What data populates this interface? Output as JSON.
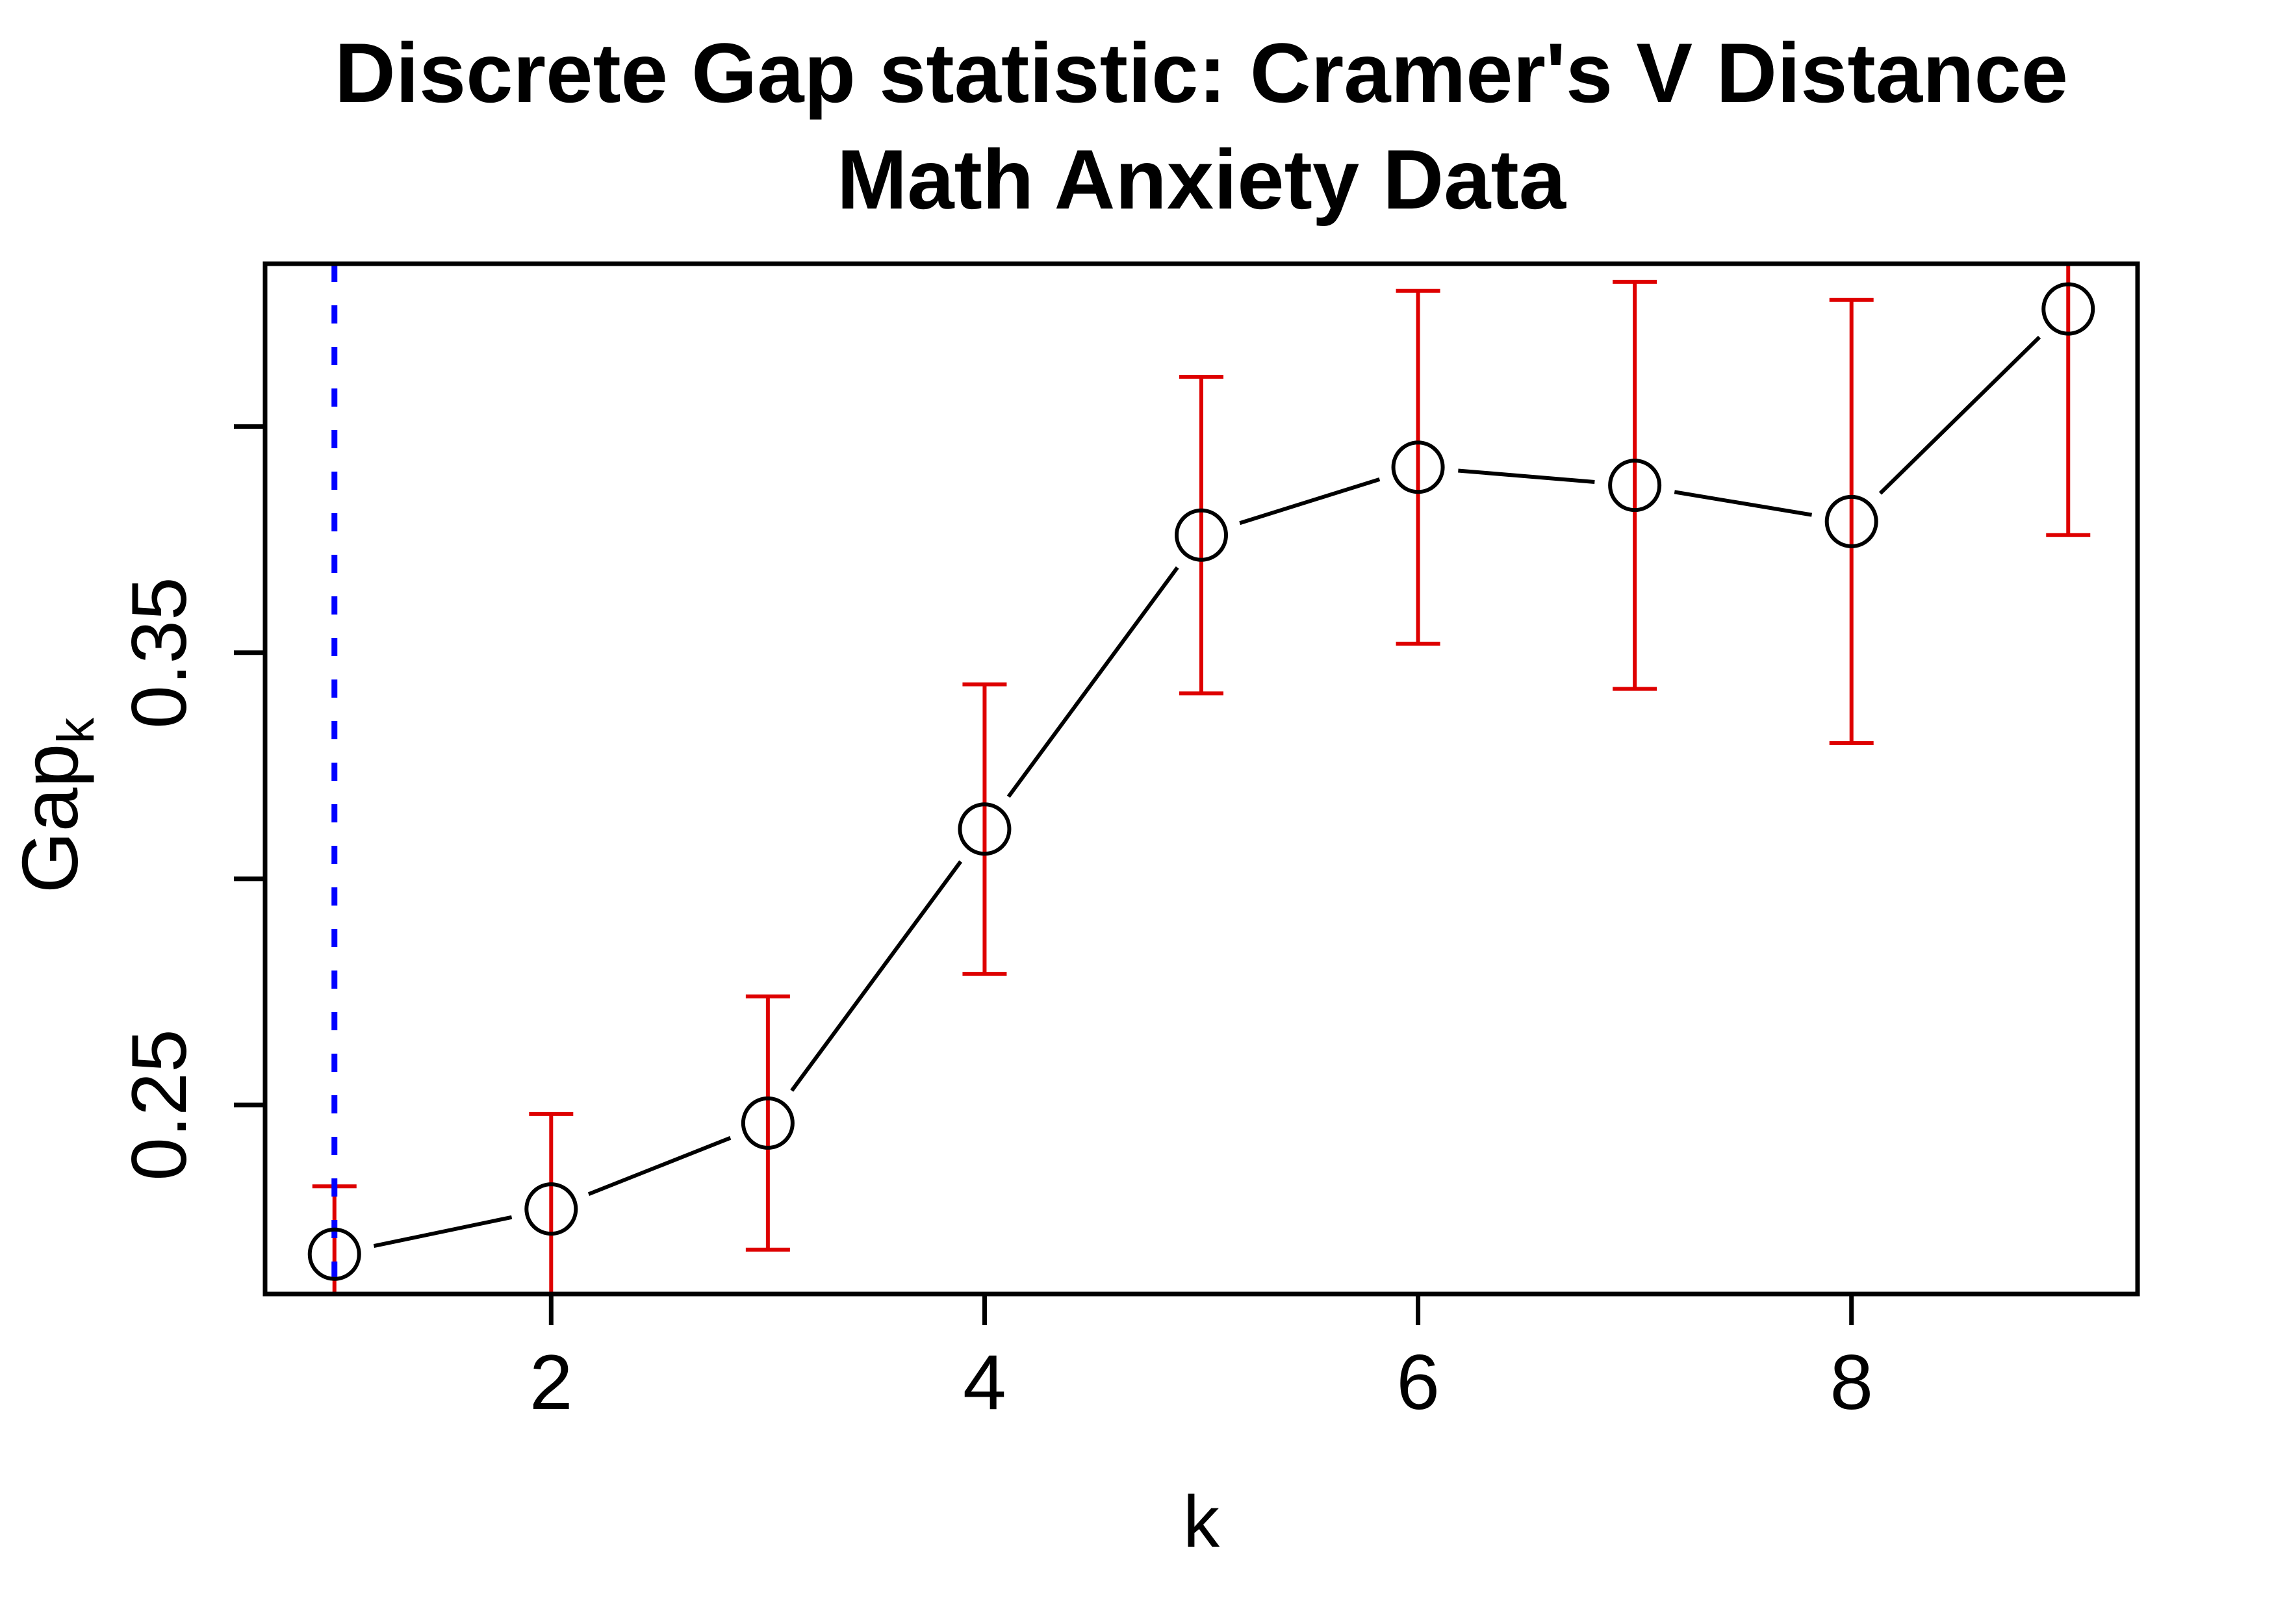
{
  "chart_data": {
    "type": "line",
    "title": "Discrete Gap statistic: Cramer's V Distance",
    "subtitle": "Math Anxiety Data",
    "xlabel": "k",
    "ylabel": "Gap",
    "ylabel_sub": "k",
    "marker": "open-circle",
    "grid": false,
    "legend": null,
    "x": [
      1,
      2,
      3,
      4,
      5,
      6,
      7,
      8,
      9
    ],
    "series": [
      {
        "name": "Gap statistic",
        "values": [
          0.217,
          0.227,
          0.246,
          0.311,
          0.376,
          0.391,
          0.387,
          0.379,
          0.426
        ],
        "errors": [
          0.015,
          0.021,
          0.028,
          0.032,
          0.035,
          0.039,
          0.045,
          0.049,
          0.05
        ]
      }
    ],
    "x_ticks": [
      2,
      4,
      6,
      8
    ],
    "x_tick_labels": [
      "2",
      "4",
      "6",
      "8"
    ],
    "y_ticks": [
      0.25,
      0.3,
      0.35,
      0.4
    ],
    "y_tick_labels": [
      "0.25",
      "",
      "0.35",
      ""
    ],
    "xlim": [
      0.68,
      9.32
    ],
    "ylim": [
      0.2082,
      0.436
    ],
    "reference_line": {
      "x": 1,
      "style": "dotted",
      "color": "#0000FF"
    },
    "colors": {
      "series": "#000000",
      "error_bars": "#DE0000",
      "reference_line": "#0000FF",
      "box": "#000000"
    }
  }
}
